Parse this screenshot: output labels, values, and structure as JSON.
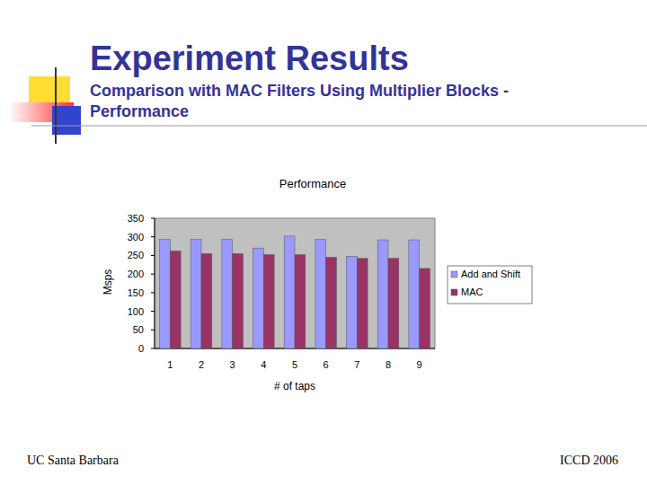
{
  "slide": {
    "title": "Experiment Results",
    "subtitle_lines": [
      "Comparison with MAC Filters Using Multiplier Blocks -",
      "Performance"
    ],
    "footer_left": "UC Santa Barbara",
    "footer_right": "ICCD 2006"
  },
  "chart_data": {
    "type": "bar",
    "title": "Performance",
    "x_label": "# of taps",
    "y_label": "Msps",
    "categories": [
      "1",
      "2",
      "3",
      "4",
      "5",
      "6",
      "7",
      "8",
      "9"
    ],
    "series": [
      {
        "name": "Add and Shift",
        "color": "#9999ff",
        "values": [
          293,
          293,
          293,
          270,
          302,
          293,
          248,
          292,
          292
        ]
      },
      {
        "name": "MAC",
        "color": "#993366",
        "values": [
          262,
          255,
          255,
          252,
          252,
          245,
          242,
          242,
          215
        ]
      }
    ],
    "ylim": [
      0,
      350
    ],
    "yticks": [
      0,
      50,
      100,
      150,
      200,
      250,
      300,
      350
    ],
    "grid": false,
    "legend": "right"
  }
}
